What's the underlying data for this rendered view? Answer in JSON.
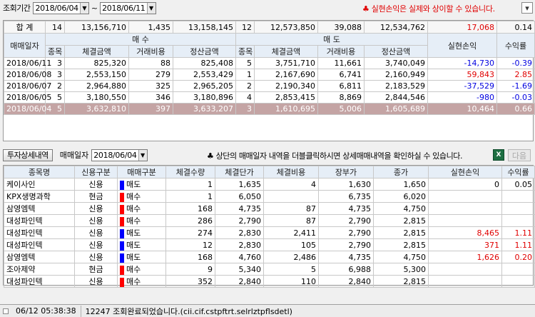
{
  "query": {
    "period_label": "조회기간",
    "start_date": "2018/06/04",
    "end_date": "2018/06/11",
    "tilde": "~",
    "warning_symbol": "♣",
    "warning": "실현손익은 실제와 상이할 수 있습니다.",
    "corner_button": "▾"
  },
  "summary": {
    "label": "합 계",
    "buy_count": "14",
    "buy_amount": "13,156,710",
    "buy_fee": "1,435",
    "buy_settle": "13,158,145",
    "sell_count": "12",
    "sell_amount": "12,573,850",
    "sell_fee": "39,088",
    "sell_settle": "12,534,762",
    "realized": "17,068",
    "return_rate": "0.14"
  },
  "daily_headers": {
    "date": "매매일자",
    "buy": "매 수",
    "sell": "매 도",
    "count": "종목",
    "amount": "체결금액",
    "fee": "거래비용",
    "settle": "정산금액",
    "realized": "실현손익",
    "return_rate": "수익률"
  },
  "daily_rows": [
    {
      "date": "2018/06/11",
      "buy_count": "3",
      "buy_amount": "825,320",
      "buy_fee": "88",
      "buy_settle": "825,408",
      "sell_count": "5",
      "sell_amount": "3,751,710",
      "sell_fee": "11,661",
      "sell_settle": "3,740,049",
      "realized": "-14,730",
      "return_rate": "-0.39",
      "color": "blue"
    },
    {
      "date": "2018/06/08",
      "buy_count": "3",
      "buy_amount": "2,553,150",
      "buy_fee": "279",
      "buy_settle": "2,553,429",
      "sell_count": "1",
      "sell_amount": "2,167,690",
      "sell_fee": "6,741",
      "sell_settle": "2,160,949",
      "realized": "59,843",
      "return_rate": "2.85",
      "color": "red"
    },
    {
      "date": "2018/06/07",
      "buy_count": "2",
      "buy_amount": "2,964,880",
      "buy_fee": "325",
      "buy_settle": "2,965,205",
      "sell_count": "2",
      "sell_amount": "2,190,340",
      "sell_fee": "6,811",
      "sell_settle": "2,183,529",
      "realized": "-37,529",
      "return_rate": "-1.69",
      "color": "blue"
    },
    {
      "date": "2018/06/05",
      "buy_count": "5",
      "buy_amount": "3,180,550",
      "buy_fee": "346",
      "buy_settle": "3,180,896",
      "sell_count": "4",
      "sell_amount": "2,853,415",
      "sell_fee": "8,869",
      "sell_settle": "2,844,546",
      "realized": "-980",
      "return_rate": "-0.03",
      "color": "blue"
    },
    {
      "date": "2018/06/04",
      "buy_count": "5",
      "buy_amount": "3,632,810",
      "buy_fee": "397",
      "buy_settle": "3,633,207",
      "sell_count": "3",
      "sell_amount": "1,610,695",
      "sell_fee": "5,006",
      "sell_settle": "1,605,689",
      "realized": "10,464",
      "return_rate": "0.66",
      "color": "red"
    }
  ],
  "detail_bar": {
    "detail_button": "투자상세내역",
    "date_label": "매매일자",
    "date_value": "2018/06/04",
    "hint_symbol": "♣",
    "hint": "상단의 매매일자 내역을 더블클릭하시면 상세매매내역을 확인하실 수 있습니다.",
    "excel_label": "X",
    "next_button": "다음"
  },
  "detail_headers": {
    "name": "종목명",
    "credit": "신용구분",
    "side": "매매구분",
    "qty": "체결수량",
    "price": "체결단가",
    "fee": "체결비용",
    "book": "장부가",
    "close": "종가",
    "realized": "실현손익",
    "return_rate": "수익률"
  },
  "side_colors": {
    "sell": "#0000ff",
    "buy": "#ff0000"
  },
  "detail_rows": [
    {
      "name": "케이사인",
      "credit": "신용",
      "side": "매도",
      "side_type": "sell",
      "qty": "1",
      "price": "1,635",
      "fee": "4",
      "book": "1,630",
      "close": "1,650",
      "realized": "0",
      "return_rate": "0.05",
      "color": ""
    },
    {
      "name": "KPX생명과학",
      "credit": "현금",
      "side": "매수",
      "side_type": "buy",
      "qty": "1",
      "price": "6,050",
      "fee": "",
      "book": "6,735",
      "close": "6,020",
      "realized": "",
      "return_rate": "",
      "color": ""
    },
    {
      "name": "삼영엠텍",
      "credit": "신용",
      "side": "매수",
      "side_type": "buy",
      "qty": "168",
      "price": "4,735",
      "fee": "87",
      "book": "4,735",
      "close": "4,750",
      "realized": "",
      "return_rate": "",
      "color": ""
    },
    {
      "name": "대성파인텍",
      "credit": "신용",
      "side": "매수",
      "side_type": "buy",
      "qty": "286",
      "price": "2,790",
      "fee": "87",
      "book": "2,790",
      "close": "2,815",
      "realized": "",
      "return_rate": "",
      "color": ""
    },
    {
      "name": "대성파인텍",
      "credit": "신용",
      "side": "매도",
      "side_type": "sell",
      "qty": "274",
      "price": "2,830",
      "fee": "2,411",
      "book": "2,790",
      "close": "2,815",
      "realized": "8,465",
      "return_rate": "1.11",
      "color": "red"
    },
    {
      "name": "대성파인텍",
      "credit": "신용",
      "side": "매도",
      "side_type": "sell",
      "qty": "12",
      "price": "2,830",
      "fee": "105",
      "book": "2,790",
      "close": "2,815",
      "realized": "371",
      "return_rate": "1.11",
      "color": "red"
    },
    {
      "name": "삼영엠텍",
      "credit": "신용",
      "side": "매도",
      "side_type": "sell",
      "qty": "168",
      "price": "4,760",
      "fee": "2,486",
      "book": "4,735",
      "close": "4,750",
      "realized": "1,626",
      "return_rate": "0.20",
      "color": "red"
    },
    {
      "name": "조아제약",
      "credit": "현금",
      "side": "매수",
      "side_type": "buy",
      "qty": "9",
      "price": "5,340",
      "fee": "5",
      "book": "6,988",
      "close": "5,300",
      "realized": "",
      "return_rate": "",
      "color": ""
    },
    {
      "name": "대성파인텍",
      "credit": "신용",
      "side": "매수",
      "side_type": "buy",
      "qty": "352",
      "price": "2,840",
      "fee": "110",
      "book": "2,840",
      "close": "2,815",
      "realized": "",
      "return_rate": "",
      "color": ""
    }
  ],
  "status": {
    "time": "06/12 05:38:38",
    "message": "12247 조회완료되었습니다.(cii.cif.cstpftrt.selrlztpflsdetl)"
  }
}
